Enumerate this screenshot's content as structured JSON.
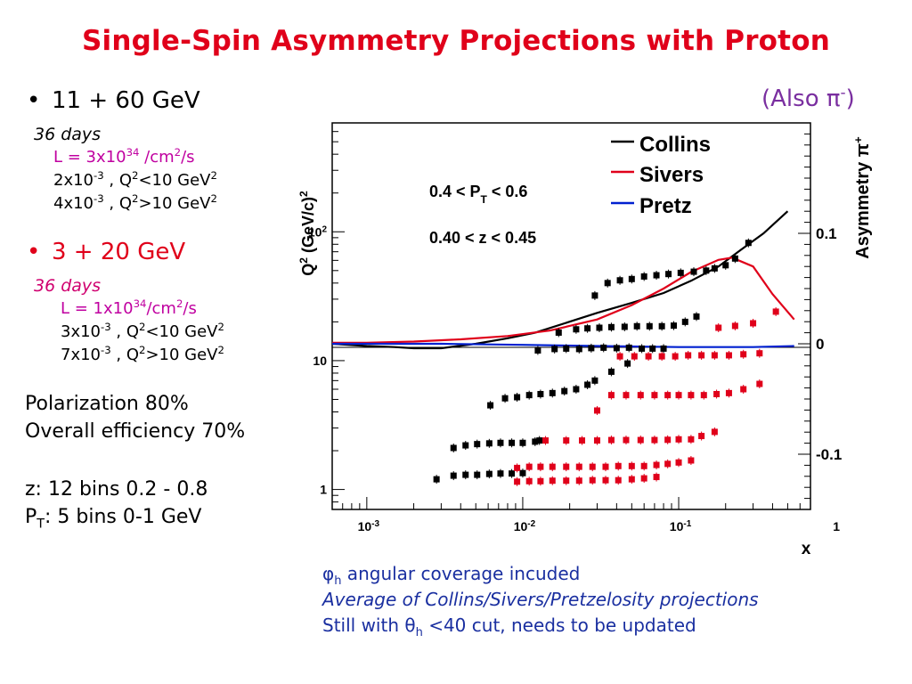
{
  "slide": {
    "title": "Single-Spin Asymmetry Projections with Proton",
    "also_label": "(Also π",
    "also_sup": "-",
    "also_close": ")"
  },
  "config1": {
    "heading": "11 + 60 GeV",
    "days": "36 days",
    "lum_pre": "L = 3x10",
    "lum_exp": "34",
    "lum_mid": " /cm",
    "lum_exp2": "2",
    "lum_post": "/s",
    "lines": [
      {
        "pre": "2x10",
        "exp": "-3",
        "mid": " , Q",
        "exp2": "2",
        "post": "<10 GeV",
        "exp3": "2"
      },
      {
        "pre": "4x10",
        "exp": "-3",
        "mid": " , Q",
        "exp2": "2",
        "post": ">10 GeV",
        "exp3": "2"
      }
    ]
  },
  "config2": {
    "heading": "3 + 20 GeV",
    "days": "36 days",
    "lum_pre": "L = 1x10",
    "lum_exp": "34",
    "lum_mid": "/cm",
    "lum_exp2": "2",
    "lum_post": "/s",
    "lines": [
      {
        "pre": "3x10",
        "exp": "-3",
        "mid": " , Q",
        "exp2": "2",
        "post": "<10 GeV",
        "exp3": "2"
      },
      {
        "pre": "7x10",
        "exp": "-3",
        "mid": " , Q",
        "exp2": "2",
        "post": ">10 GeV",
        "exp3": "2"
      }
    ]
  },
  "info": {
    "polarization": "Polarization 80%",
    "efficiency": "Overall efficiency 70%",
    "z_bins": "z:  12 bins 0.2 - 0.8",
    "pt_pre": "P",
    "pt_sub": "T",
    "pt_post": ": 5 bins 0-1 GeV"
  },
  "notes": {
    "line1_phi": "φ",
    "line1_sub": "h",
    "line1_rest": " angular coverage incuded",
    "line2": "Average of  Collins/Sivers/Pretzelosity projections",
    "line3_pre": "Still with θ",
    "line3_sub": "h",
    "line3_rest": " <40 cut, needs to be updated"
  },
  "colors": {
    "title": "#e0001a",
    "collins": "#000000",
    "sivers": "#e0001a",
    "pretz": "#0020d0",
    "black_points": "#000000",
    "red_points": "#e0001a",
    "notes": "#1a2fa0",
    "also": "#7a2fa0"
  },
  "chart_data": {
    "type": "scatter",
    "x_axis": {
      "label": "x",
      "scale": "log",
      "range": [
        0.0006,
        0.7
      ],
      "tick_labels": [
        {
          "value": 0.001,
          "base": "10",
          "exp": "-3"
        },
        {
          "value": 0.01,
          "base": "10",
          "exp": "-2"
        },
        {
          "value": 0.1,
          "base": "10",
          "exp": "-1"
        },
        {
          "value": 1,
          "base": "1",
          "exp": ""
        }
      ]
    },
    "y_left": {
      "label_pre": "Q",
      "label_exp": "2",
      "label_post": " (GeV/c)",
      "label_exp2": "2",
      "scale": "log",
      "range": [
        0.7,
        700
      ],
      "tick_labels": [
        {
          "value": 1,
          "base": "1",
          "exp": ""
        },
        {
          "value": 10,
          "base": "10",
          "exp": ""
        },
        {
          "value": 100,
          "base": "10",
          "exp": "2"
        }
      ]
    },
    "y_right": {
      "label_pre": "Asymmetry π",
      "label_exp": "+",
      "range": [
        -0.15,
        0.2
      ],
      "tick_labels": [
        "0.1",
        "0",
        "-0.1"
      ],
      "tick_values": [
        0.1,
        0,
        -0.1
      ]
    },
    "annotations": {
      "pt_pre": "0.4 < P",
      "pt_sub": "T",
      "pt_post": " < 0.6",
      "z_range": "0.40 < z < 0.45"
    },
    "legend": [
      {
        "name": "Collins",
        "color": "#000000"
      },
      {
        "name": "Sivers",
        "color": "#e0001a"
      },
      {
        "name": "Pretz",
        "color": "#0020d0"
      }
    ],
    "legend_position": "top-right",
    "curves": [
      {
        "name": "Collins",
        "color": "#000000",
        "x": [
          0.0006,
          0.001,
          0.0015,
          0.002,
          0.003,
          0.005,
          0.008,
          0.012,
          0.02,
          0.03,
          0.05,
          0.08,
          0.12,
          0.18,
          0.25,
          0.35,
          0.5
        ],
        "y": [
          0.0,
          -0.002,
          -0.003,
          -0.004,
          -0.004,
          0.0,
          0.005,
          0.01,
          0.02,
          0.028,
          0.037,
          0.046,
          0.057,
          0.07,
          0.085,
          0.1,
          0.12
        ]
      },
      {
        "name": "Sivers",
        "color": "#e0001a",
        "x": [
          0.0006,
          0.001,
          0.002,
          0.004,
          0.008,
          0.015,
          0.03,
          0.05,
          0.08,
          0.12,
          0.18,
          0.22,
          0.3,
          0.4,
          0.55
        ],
        "y": [
          0.001,
          0.001,
          0.002,
          0.004,
          0.007,
          0.012,
          0.022,
          0.035,
          0.05,
          0.065,
          0.076,
          0.078,
          0.07,
          0.045,
          0.022
        ]
      },
      {
        "name": "Pretz",
        "color": "#0020d0",
        "x": [
          0.0006,
          0.003,
          0.01,
          0.03,
          0.1,
          0.3,
          0.55
        ],
        "y": [
          0.0,
          0.0,
          -0.001,
          -0.002,
          -0.003,
          -0.003,
          -0.002
        ]
      }
    ],
    "black_points": {
      "x": [
        0.0028,
        0.0036,
        0.0043,
        0.0051,
        0.0061,
        0.0072,
        0.0085,
        0.01,
        0.0036,
        0.0043,
        0.0051,
        0.0061,
        0.0072,
        0.0085,
        0.01,
        0.012,
        0.0128,
        0.0062,
        0.0077,
        0.0092,
        0.011,
        0.013,
        0.0155,
        0.0185,
        0.022,
        0.026,
        0.029,
        0.037,
        0.047,
        0.0125,
        0.016,
        0.019,
        0.023,
        0.0275,
        0.033,
        0.04,
        0.048,
        0.058,
        0.068,
        0.08,
        0.017,
        0.022,
        0.026,
        0.031,
        0.037,
        0.045,
        0.054,
        0.065,
        0.078,
        0.093,
        0.11,
        0.13,
        0.029,
        0.035,
        0.042,
        0.05,
        0.06,
        0.072,
        0.086,
        0.103,
        0.125,
        0.15,
        0.17,
        0.2,
        0.23,
        0.28
      ],
      "y": [
        1.2,
        1.28,
        1.3,
        1.3,
        1.32,
        1.33,
        1.33,
        1.34,
        2.1,
        2.2,
        2.25,
        2.28,
        2.3,
        2.3,
        2.3,
        2.35,
        2.4,
        4.5,
        5.1,
        5.2,
        5.4,
        5.5,
        5.6,
        5.8,
        6.0,
        6.5,
        7.0,
        8.2,
        9.5,
        12.0,
        12.3,
        12.4,
        12.3,
        12.5,
        12.6,
        12.5,
        12.6,
        12.4,
        12.4,
        12.4,
        16.5,
        17.5,
        17.8,
        18.0,
        18.2,
        18.3,
        18.5,
        18.5,
        18.5,
        18.7,
        20.0,
        22.0,
        32.0,
        40.0,
        42.0,
        43.0,
        45.0,
        46.0,
        47.0,
        48.0,
        49.0,
        50.0,
        52.0,
        55.0,
        62.0,
        82.0
      ]
    },
    "red_points": {
      "x": [
        0.0092,
        0.011,
        0.013,
        0.0155,
        0.019,
        0.023,
        0.028,
        0.034,
        0.041,
        0.05,
        0.06,
        0.072,
        0.0092,
        0.011,
        0.013,
        0.0155,
        0.019,
        0.023,
        0.028,
        0.034,
        0.041,
        0.05,
        0.06,
        0.072,
        0.085,
        0.1,
        0.12,
        0.014,
        0.019,
        0.024,
        0.03,
        0.037,
        0.046,
        0.057,
        0.07,
        0.085,
        0.1,
        0.12,
        0.14,
        0.17,
        0.03,
        0.037,
        0.046,
        0.057,
        0.07,
        0.085,
        0.1,
        0.12,
        0.145,
        0.175,
        0.21,
        0.26,
        0.33,
        0.042,
        0.052,
        0.064,
        0.078,
        0.095,
        0.115,
        0.14,
        0.17,
        0.21,
        0.26,
        0.33
      ],
      "y": [
        1.15,
        1.16,
        1.16,
        1.17,
        1.17,
        1.17,
        1.18,
        1.18,
        1.18,
        1.2,
        1.22,
        1.25,
        1.47,
        1.5,
        1.5,
        1.5,
        1.5,
        1.5,
        1.5,
        1.5,
        1.52,
        1.52,
        1.52,
        1.55,
        1.58,
        1.62,
        1.68,
        2.4,
        2.4,
        2.4,
        2.4,
        2.42,
        2.42,
        2.42,
        2.42,
        2.43,
        2.45,
        2.45,
        2.6,
        2.8,
        4.1,
        5.4,
        5.4,
        5.4,
        5.4,
        5.4,
        5.4,
        5.4,
        5.4,
        5.5,
        5.6,
        6.0,
        6.6,
        10.8,
        10.8,
        10.8,
        10.8,
        10.8,
        11.0,
        11.0,
        11.0,
        11.0,
        11.2,
        11.4
      ]
    },
    "red_upper_points": {
      "x": [
        0.18,
        0.23,
        0.3,
        0.42
      ],
      "y": [
        18.0,
        18.6,
        19.5,
        24.0
      ]
    }
  }
}
